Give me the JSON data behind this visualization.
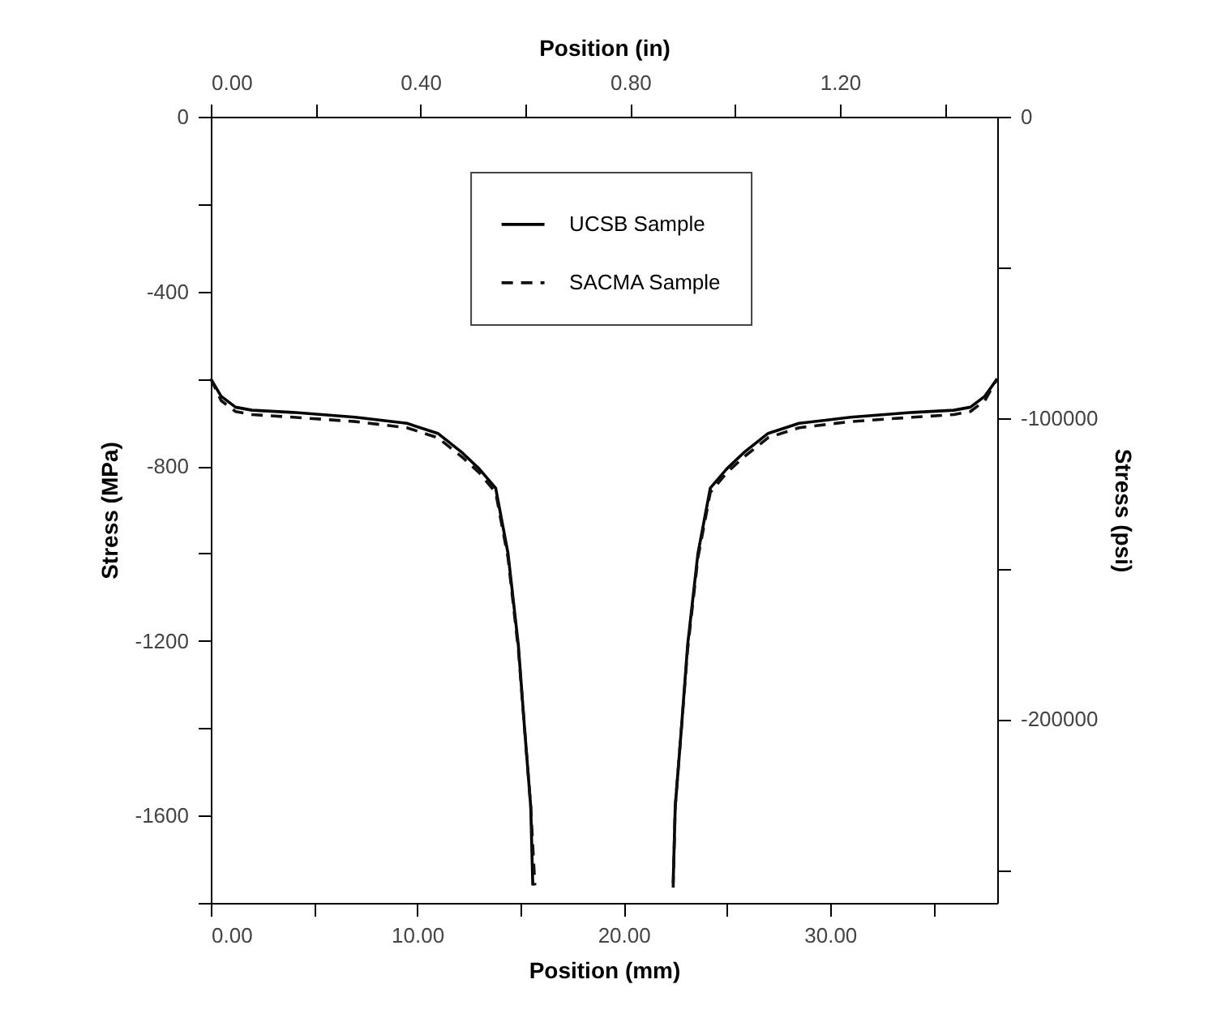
{
  "chart_data": {
    "type": "line",
    "xlabel": "Position (mm)",
    "x2label": "Position (in)",
    "ylabel": "Stress (MPa)",
    "y2label": "Stress (psi)",
    "xlim": [
      0,
      38.1
    ],
    "xticks": [
      {
        "value": 0,
        "label": "0.00"
      },
      {
        "value": 5,
        "label": null
      },
      {
        "value": 10,
        "label": "10.00"
      },
      {
        "value": 15,
        "label": null
      },
      {
        "value": 20,
        "label": "20.00"
      },
      {
        "value": 25,
        "label": null
      },
      {
        "value": 30,
        "label": "30.00"
      },
      {
        "value": 35,
        "label": null
      }
    ],
    "x2lim": [
      0,
      1.5
    ],
    "x2ticks": [
      {
        "value": 0,
        "label": "0.00"
      },
      {
        "value": 0.2,
        "label": null
      },
      {
        "value": 0.4,
        "label": "0.40"
      },
      {
        "value": 0.6,
        "label": null
      },
      {
        "value": 0.8,
        "label": "0.80"
      },
      {
        "value": 1.0,
        "label": null
      },
      {
        "value": 1.2,
        "label": "1.20"
      },
      {
        "value": 1.4,
        "label": null
      }
    ],
    "ylim": [
      -1800,
      0
    ],
    "yticks": [
      0,
      {
        "value": -200,
        "label": null
      },
      -400,
      {
        "value": -600,
        "label": null
      },
      -800,
      {
        "value": -1000,
        "label": null
      },
      -1200,
      {
        "value": -1400,
        "label": null
      },
      -1600,
      {
        "value": -1800,
        "label": null
      }
    ],
    "y2lim": [
      -261000,
      0
    ],
    "y2ticks": [
      0,
      {
        "value": -50000,
        "label": null
      },
      -100000,
      {
        "value": -150000,
        "label": null
      },
      -200000,
      {
        "value": -250000,
        "label": null
      }
    ],
    "legend": "top",
    "grid": false,
    "series": [
      {
        "name": "UCSB Sample",
        "color": "#000000",
        "line_style": "solid",
        "x": [
          0,
          0.5,
          1.2,
          2,
          4,
          7,
          9.5,
          11,
          12.2,
          13,
          13.8,
          14.4,
          14.9,
          15.2,
          15.5,
          15.6,
          19,
          22.4,
          22.5,
          22.8,
          23.1,
          23.6,
          24.2,
          25,
          25.8,
          27,
          28.5,
          31,
          34,
          36,
          36.8,
          37.5,
          38.1
        ],
        "values": [
          -600,
          -640,
          -665,
          -672,
          -677,
          -688,
          -702,
          -725,
          -770,
          -806,
          -850,
          -1000,
          -1210,
          -1400,
          -1580,
          -1760,
          null,
          -1755,
          -1580,
          -1400,
          -1210,
          -1000,
          -850,
          -806,
          -770,
          -725,
          -702,
          -688,
          -677,
          -672,
          -665,
          -640,
          -600
        ]
      },
      {
        "name": "SACMA Sample",
        "color": "#111111",
        "line_style": "dashed",
        "x": [
          0,
          0.5,
          1.2,
          2,
          4,
          7,
          9.5,
          11,
          12.2,
          13,
          13.8,
          14.4,
          14.9,
          15.2,
          15.5,
          15.7,
          19,
          22.4,
          22.5,
          22.8,
          23.1,
          23.6,
          24.2,
          25,
          25.8,
          27,
          28.5,
          31,
          34,
          36,
          36.8,
          37.5,
          38.1
        ],
        "values": [
          -600,
          -650,
          -675,
          -682,
          -688,
          -698,
          -712,
          -735,
          -780,
          -815,
          -860,
          -1010,
          -1220,
          -1400,
          -1580,
          -1760,
          null,
          -1765,
          -1580,
          -1400,
          -1220,
          -1010,
          -860,
          -815,
          -780,
          -735,
          -712,
          -698,
          -688,
          -682,
          -675,
          -650,
          -600
        ]
      }
    ]
  }
}
